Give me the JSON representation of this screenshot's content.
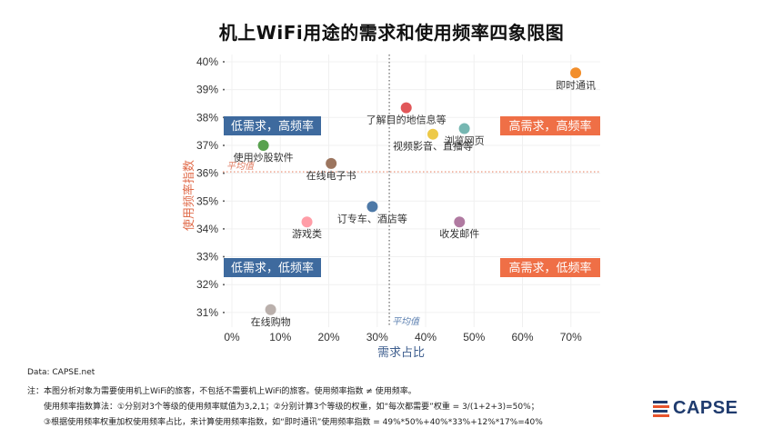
{
  "chart_data": {
    "type": "scatter",
    "title": "机上WiFi用途的需求和使用频率四象限图",
    "xlabel": "需求占比",
    "ylabel": "使用频率指数",
    "xlim": [
      0,
      0.75
    ],
    "ylim": [
      0.305,
      0.4
    ],
    "x_ticks": [
      0,
      0.1,
      0.2,
      0.3,
      0.4,
      0.5,
      0.6,
      0.7
    ],
    "x_tick_labels": [
      "0%",
      "10%",
      "20%",
      "30%",
      "40%",
      "50%",
      "60%",
      "70%"
    ],
    "y_ticks": [
      0.31,
      0.32,
      0.33,
      0.34,
      0.35,
      0.36,
      0.37,
      0.38,
      0.39,
      0.4
    ],
    "y_tick_labels": [
      "31%",
      "32%",
      "33%",
      "34%",
      "35%",
      "36%",
      "37%",
      "38%",
      "39%",
      "40%"
    ],
    "grid": true,
    "average_x": 0.325,
    "average_y": 0.3605,
    "average_label": "平均值",
    "points": [
      {
        "name": "即时通讯",
        "x": 0.71,
        "y": 0.396,
        "color": "#f28e2b"
      },
      {
        "name": "了解目的地信息等",
        "x": 0.36,
        "y": 0.3835,
        "color": "#e15759"
      },
      {
        "name": "浏览网页",
        "x": 0.48,
        "y": 0.376,
        "color": "#76b7b2"
      },
      {
        "name": "视频影音、直播等",
        "x": 0.415,
        "y": 0.374,
        "color": "#edc948"
      },
      {
        "name": "使用炒股软件",
        "x": 0.065,
        "y": 0.37,
        "color": "#59a14f"
      },
      {
        "name": "在线电子书",
        "x": 0.205,
        "y": 0.3635,
        "color": "#9c755f"
      },
      {
        "name": "订专车、酒店等",
        "x": 0.29,
        "y": 0.348,
        "color": "#4e79a7"
      },
      {
        "name": "游戏类",
        "x": 0.155,
        "y": 0.3425,
        "color": "#ff9da7"
      },
      {
        "name": "收发邮件",
        "x": 0.47,
        "y": 0.3425,
        "color": "#b07aa1"
      },
      {
        "name": "在线购物",
        "x": 0.08,
        "y": 0.311,
        "color": "#bab0ac"
      }
    ],
    "quadrants": [
      {
        "label": "低需求，高频率",
        "position": "top-left",
        "color": "#3e6a9e"
      },
      {
        "label": "高需求，高频率",
        "position": "top-right",
        "color": "#ef6f46"
      },
      {
        "label": "低需求，低频率",
        "position": "bottom-left",
        "color": "#3e6a9e"
      },
      {
        "label": "高需求，低频率",
        "position": "bottom-right",
        "color": "#ef6f46"
      }
    ]
  },
  "footer": {
    "source": "Data: CAPSE.net",
    "note1": "注：本图分析对象为需要使用机上WiFi的旅客，不包括不需要机上WiFi的旅客。使用频率指数 ≠ 使用频率。",
    "note2": "使用频率指数算法：①分别对3个等级的使用频率赋值为3,2,1；②分别计算3个等级的权重，如“每次都需要”权重 = 3/(1+2+3)=50%；",
    "note3": "③根据使用频率权重加权使用频率占比，来计算使用频率指数，如“即时通讯”使用频率指数 = 49%*50%+40%*33%+12%*17%=40%"
  },
  "logo": {
    "text": "CAPSE",
    "bar_colors": [
      "#1f3b6e",
      "#e8542c",
      "#1f3b6e",
      "#e8542c"
    ]
  }
}
